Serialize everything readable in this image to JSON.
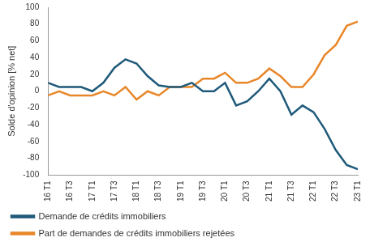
{
  "chart_data": {
    "type": "line",
    "y_label": "Solde d'opinion [% net]",
    "categories": [
      "16 T1",
      null,
      "16 T3",
      null,
      "17 T1",
      null,
      "17 T3",
      null,
      "18 T1",
      null,
      "18 T3",
      null,
      "19 T1",
      null,
      "19 T3",
      null,
      "20 T1",
      null,
      "20 T3",
      null,
      "21 T1",
      null,
      "21 T3",
      null,
      "22 T1",
      null,
      "22 T3",
      null,
      "23 T1"
    ],
    "series": [
      {
        "name": "Demande de crédits immobiliers",
        "color": "#1f5a7a",
        "values": [
          10,
          5,
          5,
          5,
          0,
          10,
          28,
          38,
          33,
          18,
          7,
          5,
          5,
          10,
          0,
          0,
          10,
          -17,
          -12,
          0,
          15,
          0,
          -28,
          -17,
          -25,
          -45,
          -70,
          -88,
          -93
        ]
      },
      {
        "name": "Part de demandes de crédits immobiliers rejetées",
        "color": "#e8872a",
        "values": [
          -5,
          0,
          -5,
          -5,
          -5,
          0,
          -5,
          5,
          -10,
          0,
          -5,
          5,
          5,
          5,
          15,
          15,
          22,
          10,
          10,
          15,
          27,
          18,
          5,
          5,
          20,
          43,
          55,
          78,
          83
        ]
      }
    ],
    "ylim": [
      -100,
      100
    ],
    "yticks": [
      -100,
      -80,
      -60,
      -40,
      -20,
      0,
      20,
      40,
      60,
      80,
      100
    ],
    "grid": false,
    "legend": "bottom"
  }
}
